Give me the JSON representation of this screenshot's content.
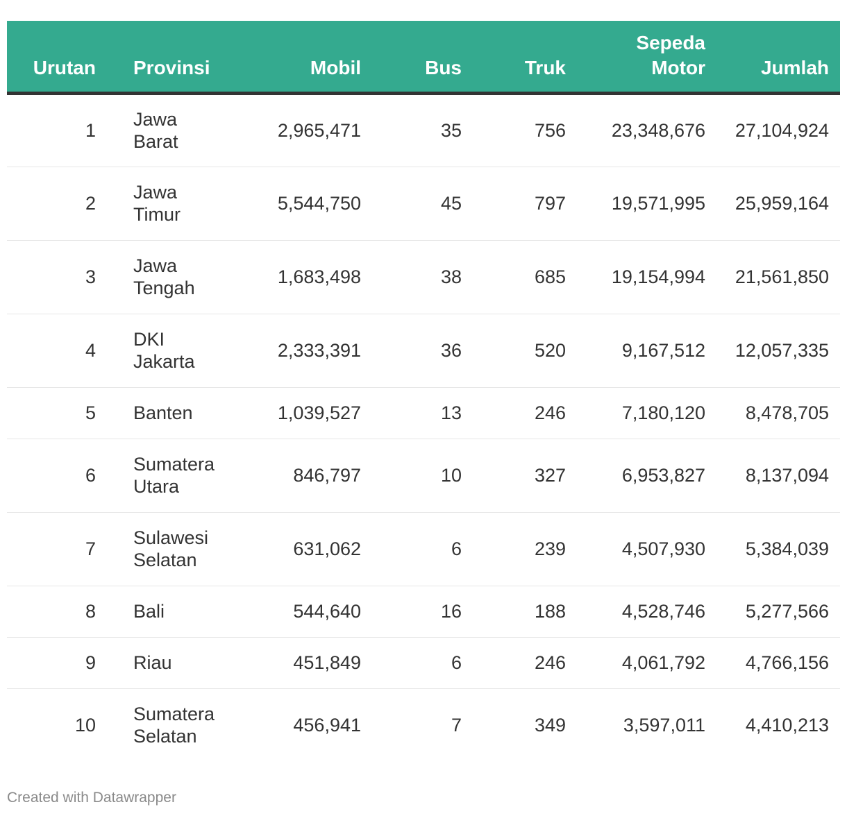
{
  "chart_data": {
    "type": "table",
    "columns": [
      "Urutan",
      "Provinsi",
      "Mobil",
      "Bus",
      "Truk",
      "Sepeda Motor",
      "Jumlah"
    ],
    "header": {
      "urutan": "Urutan",
      "provinsi": "Provinsi",
      "mobil": "Mobil",
      "bus": "Bus",
      "truk": "Truk",
      "sepeda_line1": "Sepeda",
      "sepeda_line2": "Motor",
      "jumlah": "Jumlah"
    },
    "rows": [
      {
        "urutan": "1",
        "prov1": "Jawa",
        "prov2": "Barat",
        "mobil": "2,965,471",
        "bus": "35",
        "truk": "756",
        "sepeda": "23,348,676",
        "jumlah": "27,104,924"
      },
      {
        "urutan": "2",
        "prov1": "Jawa",
        "prov2": "Timur",
        "mobil": "5,544,750",
        "bus": "45",
        "truk": "797",
        "sepeda": "19,571,995",
        "jumlah": "25,959,164"
      },
      {
        "urutan": "3",
        "prov1": "Jawa",
        "prov2": "Tengah",
        "mobil": "1,683,498",
        "bus": "38",
        "truk": "685",
        "sepeda": "19,154,994",
        "jumlah": "21,561,850"
      },
      {
        "urutan": "4",
        "prov1": "DKI",
        "prov2": "Jakarta",
        "mobil": "2,333,391",
        "bus": "36",
        "truk": "520",
        "sepeda": "9,167,512",
        "jumlah": "12,057,335"
      },
      {
        "urutan": "5",
        "prov1": "Banten",
        "prov2": "",
        "mobil": "1,039,527",
        "bus": "13",
        "truk": "246",
        "sepeda": "7,180,120",
        "jumlah": "8,478,705"
      },
      {
        "urutan": "6",
        "prov1": "Sumatera",
        "prov2": "Utara",
        "mobil": "846,797",
        "bus": "10",
        "truk": "327",
        "sepeda": "6,953,827",
        "jumlah": "8,137,094"
      },
      {
        "urutan": "7",
        "prov1": "Sulawesi",
        "prov2": "Selatan",
        "mobil": "631,062",
        "bus": "6",
        "truk": "239",
        "sepeda": "4,507,930",
        "jumlah": "5,384,039"
      },
      {
        "urutan": "8",
        "prov1": "Bali",
        "prov2": "",
        "mobil": "544,640",
        "bus": "16",
        "truk": "188",
        "sepeda": "4,528,746",
        "jumlah": "5,277,566"
      },
      {
        "urutan": "9",
        "prov1": "Riau",
        "prov2": "",
        "mobil": "451,849",
        "bus": "6",
        "truk": "246",
        "sepeda": "4,061,792",
        "jumlah": "4,766,156"
      },
      {
        "urutan": "10",
        "prov1": "Sumatera",
        "prov2": "Selatan",
        "mobil": "456,941",
        "bus": "7",
        "truk": "349",
        "sepeda": "3,597,011",
        "jumlah": "4,410,213"
      }
    ],
    "colors": {
      "header_bg": "#34aa8f",
      "header_text": "#ffffff",
      "header_rule": "#333333",
      "row_divider": "#e6e6e6"
    }
  },
  "footer": {
    "credit": "Created with Datawrapper"
  }
}
